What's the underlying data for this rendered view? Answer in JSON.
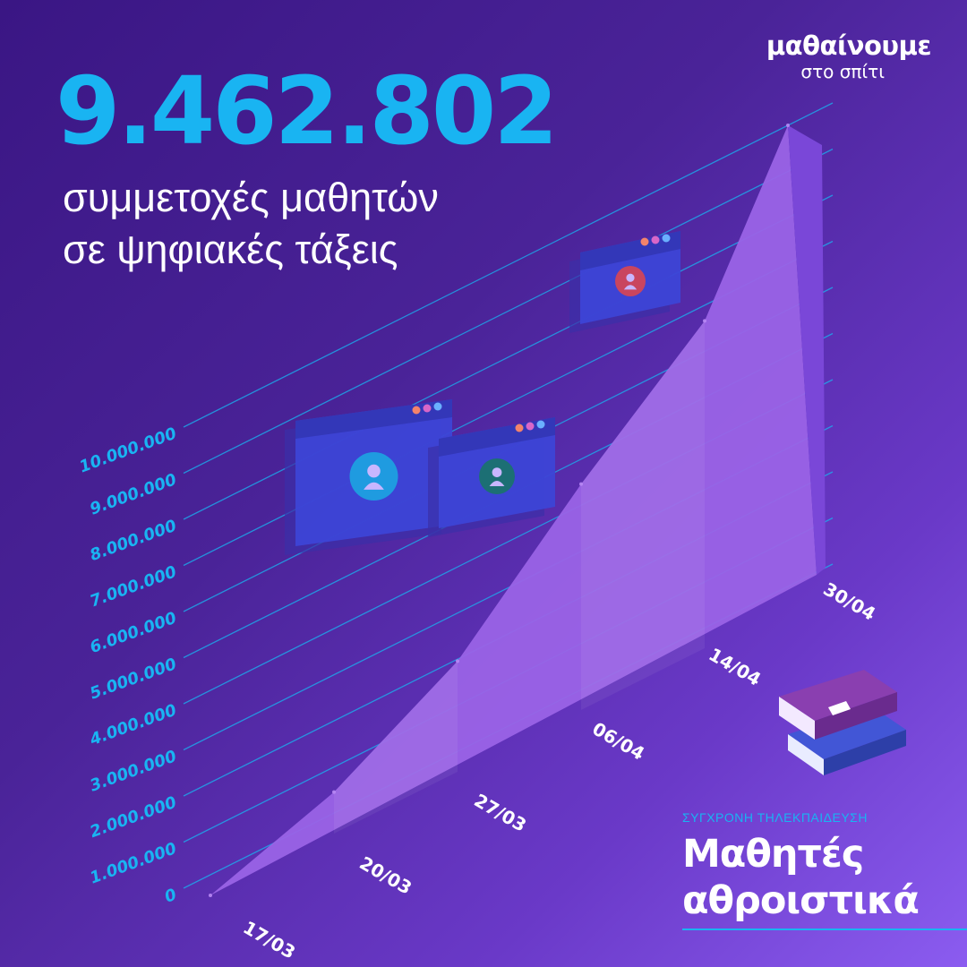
{
  "headline": {
    "number": "9.462.802",
    "line1": "συμμετοχές μαθητών",
    "line2": "σε ψηφιακές τάξεις"
  },
  "brand": {
    "name": "μαθαίνουμε",
    "tagline": "στο σπίτι"
  },
  "caption": {
    "small": "ΣΥΓΧΡΟΝΗ ΤΗΛΕΚΠΑΙΔΕΥΣΗ",
    "line1": "Μαθητές",
    "line2": "αθροιστικά"
  },
  "colors": {
    "accent": "#19b4f2",
    "area": "#9a63e6",
    "background": "#4a2398"
  },
  "icons": [
    "video-window-icon",
    "user-avatar-icon",
    "books-icon"
  ],
  "chart_data": {
    "type": "area",
    "categories": [
      "17/03",
      "20/03",
      "27/03",
      "06/04",
      "14/04",
      "30/04"
    ],
    "values": [
      0,
      900000,
      2400000,
      4900000,
      7100000,
      9462802
    ],
    "ytick_labels": [
      "0",
      "1.000.000",
      "2.000.000",
      "3.000.000",
      "4.000.000",
      "5.000.000",
      "6.000.000",
      "7.000.000",
      "8.000.000",
      "9.000.000",
      "10.000.000"
    ],
    "ylim": [
      0,
      10000000
    ],
    "grid": true,
    "legend": "none"
  }
}
